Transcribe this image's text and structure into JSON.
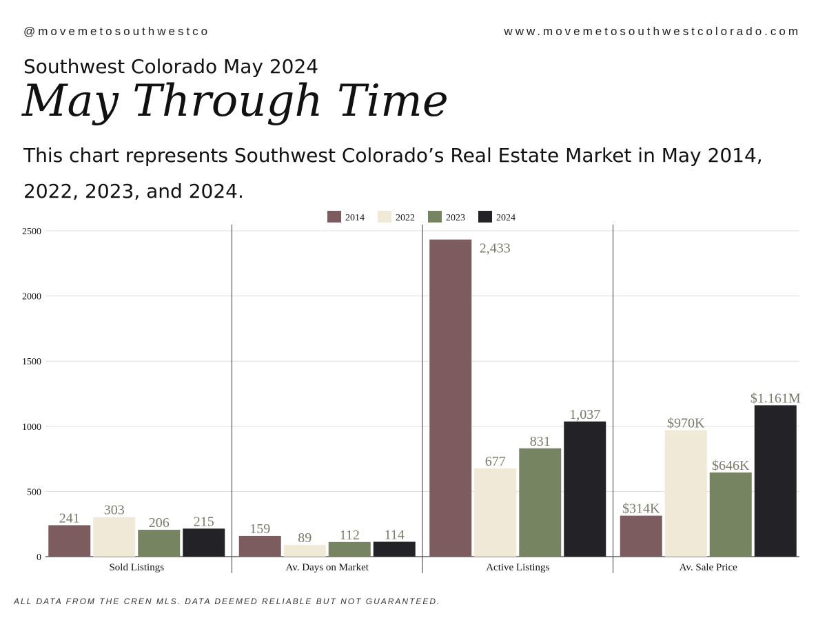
{
  "header": {
    "handle": "@movemetosouthwestco",
    "website": "www.movemetosouthwestcolorado.com",
    "subtitle": "Southwest Colorado May 2024",
    "title": "May Through Time",
    "description": "This chart represents Southwest Colorado’s Real Estate Market in May 2014, 2022, 2023, and 2024."
  },
  "footnote": "ALL DATA FROM THE CREN MLS. DATA DEEMED RELIABLE BUT NOT GUARANTEED.",
  "chart_data": {
    "type": "bar",
    "categories": [
      "Sold Listings",
      "Av. Days on Market",
      "Active Listings",
      "Av. Sale Price"
    ],
    "series": [
      {
        "name": "2014",
        "color": "#7d5c60",
        "values": [
          241,
          159,
          2433,
          314
        ],
        "labels": [
          "241",
          "159",
          "2,433",
          "$314K"
        ]
      },
      {
        "name": "2022",
        "color": "#f0e9d8",
        "values": [
          303,
          89,
          677,
          970
        ],
        "labels": [
          "303",
          "89",
          "677",
          "$970K"
        ]
      },
      {
        "name": "2023",
        "color": "#778462",
        "values": [
          206,
          112,
          831,
          646
        ],
        "labels": [
          "206",
          "112",
          "831",
          "$646K"
        ]
      },
      {
        "name": "2024",
        "color": "#232226",
        "values": [
          215,
          114,
          1037,
          1161
        ],
        "labels": [
          "215",
          "114",
          "1,037",
          "$1.161M"
        ]
      }
    ],
    "yticks": [
      0,
      500,
      1000,
      1500,
      2000,
      2500
    ],
    "ylim": [
      0,
      2500
    ],
    "grid": true,
    "legend_position": "top-center"
  }
}
